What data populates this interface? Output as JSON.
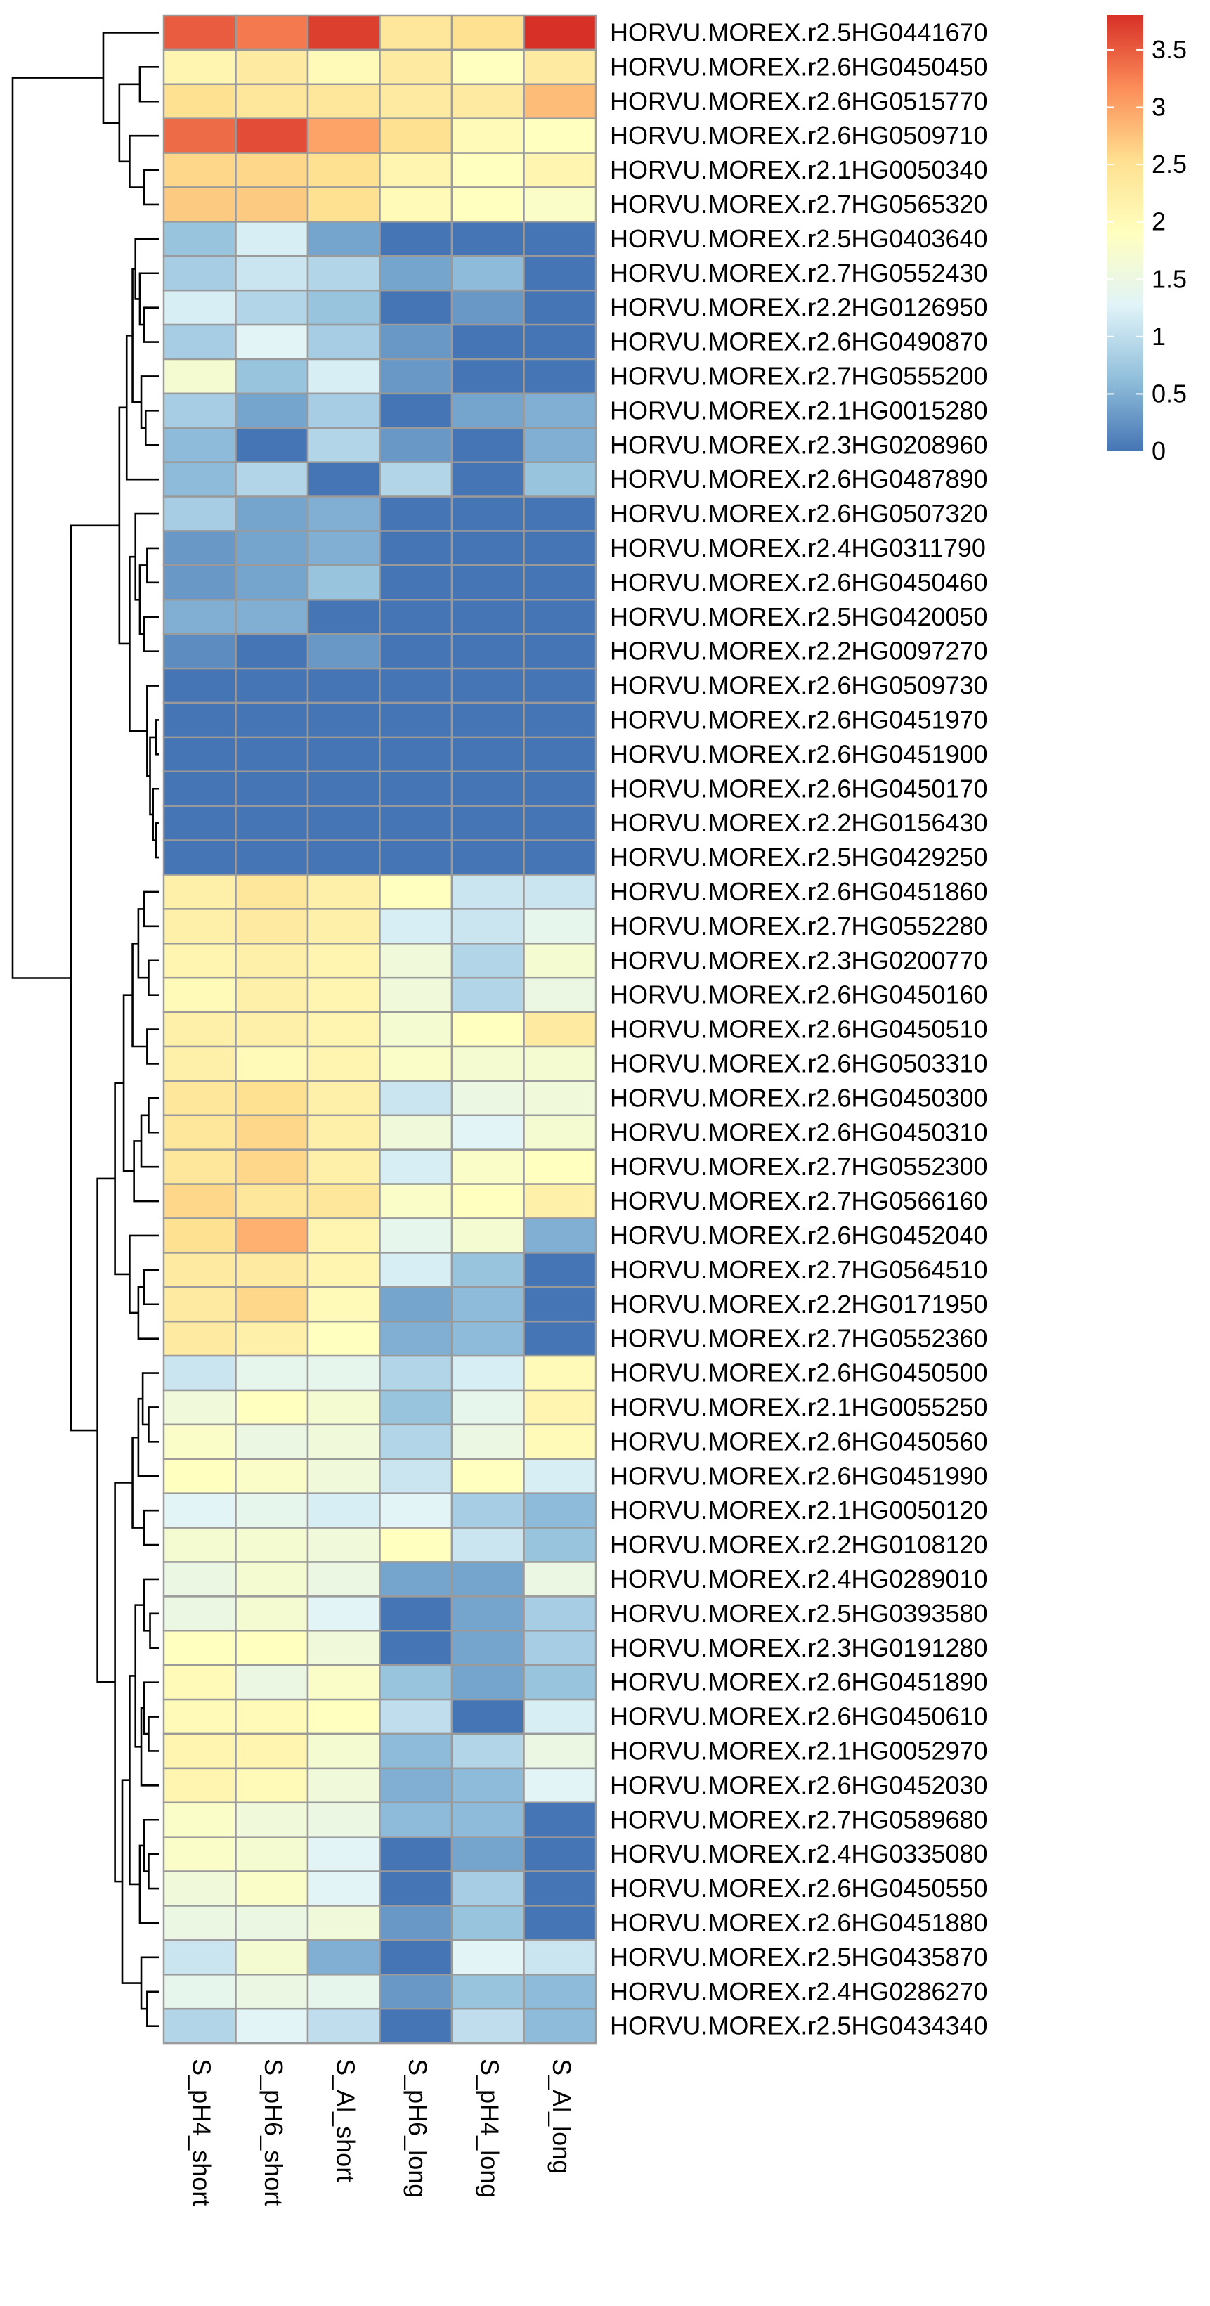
{
  "chart_data": {
    "type": "heatmap",
    "columns": [
      "S_pH4_short",
      "S_pH6_short",
      "S_Al_short",
      "S_pH6_long",
      "S_pH4_long",
      "S_Al_long"
    ],
    "rows": [
      "HORVU.MOREX.r2.5HG0441670",
      "HORVU.MOREX.r2.6HG0450450",
      "HORVU.MOREX.r2.6HG0515770",
      "HORVU.MOREX.r2.6HG0509710",
      "HORVU.MOREX.r2.1HG0050340",
      "HORVU.MOREX.r2.7HG0565320",
      "HORVU.MOREX.r2.5HG0403640",
      "HORVU.MOREX.r2.7HG0552430",
      "HORVU.MOREX.r2.2HG0126950",
      "HORVU.MOREX.r2.6HG0490870",
      "HORVU.MOREX.r2.7HG0555200",
      "HORVU.MOREX.r2.1HG0015280",
      "HORVU.MOREX.r2.3HG0208960",
      "HORVU.MOREX.r2.6HG0487890",
      "HORVU.MOREX.r2.6HG0507320",
      "HORVU.MOREX.r2.4HG0311790",
      "HORVU.MOREX.r2.6HG0450460",
      "HORVU.MOREX.r2.5HG0420050",
      "HORVU.MOREX.r2.2HG0097270",
      "HORVU.MOREX.r2.6HG0509730",
      "HORVU.MOREX.r2.6HG0451970",
      "HORVU.MOREX.r2.6HG0451900",
      "HORVU.MOREX.r2.6HG0450170",
      "HORVU.MOREX.r2.2HG0156430",
      "HORVU.MOREX.r2.5HG0429250",
      "HORVU.MOREX.r2.6HG0451860",
      "HORVU.MOREX.r2.7HG0552280",
      "HORVU.MOREX.r2.3HG0200770",
      "HORVU.MOREX.r2.6HG0450160",
      "HORVU.MOREX.r2.6HG0450510",
      "HORVU.MOREX.r2.6HG0503310",
      "HORVU.MOREX.r2.6HG0450300",
      "HORVU.MOREX.r2.6HG0450310",
      "HORVU.MOREX.r2.7HG0552300",
      "HORVU.MOREX.r2.7HG0566160",
      "HORVU.MOREX.r2.6HG0452040",
      "HORVU.MOREX.r2.7HG0564510",
      "HORVU.MOREX.r2.2HG0171950",
      "HORVU.MOREX.r2.7HG0552360",
      "HORVU.MOREX.r2.6HG0450500",
      "HORVU.MOREX.r2.1HG0055250",
      "HORVU.MOREX.r2.6HG0450560",
      "HORVU.MOREX.r2.6HG0451990",
      "HORVU.MOREX.r2.1HG0050120",
      "HORVU.MOREX.r2.2HG0108120",
      "HORVU.MOREX.r2.4HG0289010",
      "HORVU.MOREX.r2.5HG0393580",
      "HORVU.MOREX.r2.3HG0191280",
      "HORVU.MOREX.r2.6HG0451890",
      "HORVU.MOREX.r2.6HG0450610",
      "HORVU.MOREX.r2.1HG0052970",
      "HORVU.MOREX.r2.6HG0452030",
      "HORVU.MOREX.r2.7HG0589680",
      "HORVU.MOREX.r2.4HG0335080",
      "HORVU.MOREX.r2.6HG0450550",
      "HORVU.MOREX.r2.6HG0451880",
      "HORVU.MOREX.r2.5HG0435870",
      "HORVU.MOREX.r2.4HG0286270",
      "HORVU.MOREX.r2.5HG0434340"
    ],
    "values": [
      [
        3.5,
        3.3,
        3.7,
        2.4,
        2.5,
        3.8
      ],
      [
        2.1,
        2.3,
        2.0,
        2.3,
        1.9,
        2.3
      ],
      [
        2.5,
        2.4,
        2.4,
        2.3,
        2.3,
        2.8
      ],
      [
        3.4,
        3.6,
        3.0,
        2.5,
        2.0,
        1.9
      ],
      [
        2.6,
        2.6,
        2.5,
        2.1,
        1.9,
        2.1
      ],
      [
        2.7,
        2.7,
        2.5,
        2.0,
        1.9,
        1.8
      ],
      [
        0.7,
        1.2,
        0.4,
        0.0,
        0.0,
        0.0
      ],
      [
        0.8,
        1.1,
        0.9,
        0.4,
        0.6,
        0.0
      ],
      [
        1.2,
        0.9,
        0.7,
        0.0,
        0.3,
        0.0
      ],
      [
        0.8,
        1.3,
        0.8,
        0.3,
        0.0,
        0.0
      ],
      [
        1.7,
        0.7,
        1.2,
        0.3,
        0.0,
        0.0
      ],
      [
        0.8,
        0.4,
        0.8,
        0.0,
        0.4,
        0.5
      ],
      [
        0.6,
        0.0,
        0.9,
        0.3,
        0.0,
        0.5
      ],
      [
        0.6,
        0.9,
        0.0,
        0.9,
        0.0,
        0.7
      ],
      [
        0.8,
        0.4,
        0.5,
        0.0,
        0.0,
        0.0
      ],
      [
        0.3,
        0.4,
        0.5,
        0.0,
        0.0,
        0.0
      ],
      [
        0.3,
        0.4,
        0.7,
        0.0,
        0.0,
        0.0
      ],
      [
        0.5,
        0.5,
        0.0,
        0.0,
        0.0,
        0.0
      ],
      [
        0.2,
        0.0,
        0.3,
        0.0,
        0.0,
        0.0
      ],
      [
        0.0,
        0.0,
        0.0,
        0.0,
        0.0,
        0.0
      ],
      [
        0.0,
        0.0,
        0.0,
        0.0,
        0.0,
        0.0
      ],
      [
        0.0,
        0.0,
        0.0,
        0.0,
        0.0,
        0.0
      ],
      [
        0.0,
        0.0,
        0.0,
        0.0,
        0.0,
        0.0
      ],
      [
        0.0,
        0.0,
        0.0,
        0.0,
        0.0,
        0.0
      ],
      [
        0.0,
        0.0,
        0.0,
        0.0,
        0.0,
        0.0
      ],
      [
        2.2,
        2.4,
        2.2,
        1.9,
        1.1,
        1.1
      ],
      [
        2.2,
        2.3,
        2.2,
        1.2,
        1.1,
        1.4
      ],
      [
        2.1,
        2.2,
        2.1,
        1.6,
        0.9,
        1.7
      ],
      [
        2.0,
        2.2,
        2.1,
        1.6,
        0.9,
        1.5
      ],
      [
        2.2,
        2.2,
        2.1,
        1.7,
        1.9,
        2.3
      ],
      [
        2.2,
        2.0,
        2.1,
        1.8,
        1.7,
        1.7
      ],
      [
        2.4,
        2.5,
        2.2,
        1.1,
        1.5,
        1.6
      ],
      [
        2.4,
        2.6,
        2.2,
        1.6,
        1.3,
        1.7
      ],
      [
        2.4,
        2.6,
        2.2,
        1.2,
        1.8,
        1.9
      ],
      [
        2.6,
        2.4,
        2.4,
        1.8,
        1.9,
        2.2
      ],
      [
        2.5,
        2.9,
        2.1,
        1.4,
        1.7,
        0.5
      ],
      [
        2.3,
        2.3,
        2.1,
        1.2,
        0.7,
        0.0
      ],
      [
        2.3,
        2.6,
        2.0,
        0.4,
        0.6,
        0.0
      ],
      [
        2.3,
        2.2,
        1.9,
        0.5,
        0.6,
        0.0
      ],
      [
        1.1,
        1.4,
        1.4,
        0.9,
        1.2,
        2.0
      ],
      [
        1.6,
        1.9,
        1.7,
        0.7,
        1.4,
        2.1
      ],
      [
        1.8,
        1.5,
        1.6,
        0.9,
        1.5,
        2.0
      ],
      [
        1.9,
        1.8,
        1.6,
        1.1,
        1.9,
        1.2
      ],
      [
        1.3,
        1.4,
        1.2,
        1.3,
        0.8,
        0.6
      ],
      [
        1.7,
        1.7,
        1.6,
        1.9,
        1.1,
        0.7
      ],
      [
        1.5,
        1.7,
        1.5,
        0.4,
        0.4,
        1.5
      ],
      [
        1.5,
        1.7,
        1.3,
        0.0,
        0.4,
        0.8
      ],
      [
        1.9,
        1.9,
        1.6,
        0.0,
        0.4,
        0.8
      ],
      [
        2.0,
        1.5,
        1.8,
        0.7,
        0.4,
        0.7
      ],
      [
        2.0,
        2.0,
        1.9,
        1.0,
        0.0,
        1.2
      ],
      [
        2.1,
        2.1,
        1.7,
        0.6,
        0.9,
        1.5
      ],
      [
        2.1,
        2.0,
        1.6,
        0.5,
        0.6,
        1.3
      ],
      [
        1.8,
        1.6,
        1.5,
        0.6,
        0.6,
        0.0
      ],
      [
        1.8,
        1.7,
        1.3,
        0.0,
        0.4,
        0.0
      ],
      [
        1.6,
        1.8,
        1.3,
        0.0,
        0.8,
        0.0
      ],
      [
        1.5,
        1.5,
        1.6,
        0.3,
        0.7,
        0.0
      ],
      [
        1.1,
        1.7,
        0.5,
        0.0,
        1.3,
        1.1
      ],
      [
        1.4,
        1.5,
        1.4,
        0.3,
        0.7,
        0.6
      ],
      [
        0.9,
        1.3,
        1.0,
        0.0,
        1.0,
        0.6
      ]
    ],
    "scale": {
      "min": 0,
      "max": 3.8,
      "colors": [
        "#4575b4",
        "#91bfdb",
        "#e0f3f8",
        "#ffffbf",
        "#fee090",
        "#fc8d59",
        "#d73027"
      ],
      "ticks": [
        0,
        0.5,
        1,
        1.5,
        2,
        2.5,
        3,
        3.5
      ],
      "tick_labels": [
        "0",
        "0.5",
        "1",
        "1.5",
        "2",
        "2.5",
        "3",
        "3.5"
      ]
    },
    "row_dendrogram": [
      {
        "a": 20,
        "b": 21,
        "h": 0.02
      },
      {
        "a": 23,
        "b": 24,
        "h": 0.02
      },
      {
        "a": 22,
        "b": 23,
        "h": 0.04
      },
      {
        "a": 20,
        "b": 22,
        "h": 0.06
      },
      {
        "a": 19,
        "b": 20,
        "h": 0.08
      },
      {
        "a": 15,
        "b": 16,
        "h": 0.08
      },
      {
        "a": 17,
        "b": 18,
        "h": 0.1
      },
      {
        "a": 15,
        "b": 17,
        "h": 0.13
      },
      {
        "a": 14,
        "b": 15,
        "h": 0.16
      },
      {
        "a": 14,
        "b": 19,
        "h": 0.2
      },
      {
        "a": 8,
        "b": 9,
        "h": 0.1
      },
      {
        "a": 7,
        "b": 8,
        "h": 0.13
      },
      {
        "a": 6,
        "b": 7,
        "h": 0.16
      },
      {
        "a": 11,
        "b": 12,
        "h": 0.09
      },
      {
        "a": 10,
        "b": 11,
        "h": 0.12
      },
      {
        "a": 6,
        "b": 10,
        "h": 0.18
      },
      {
        "a": 6,
        "b": 13,
        "h": 0.22
      },
      {
        "a": 6,
        "b": 14,
        "h": 0.27
      },
      {
        "a": 1,
        "b": 2,
        "h": 0.13
      },
      {
        "a": 4,
        "b": 5,
        "h": 0.1
      },
      {
        "a": 3,
        "b": 4,
        "h": 0.2
      },
      {
        "a": 1,
        "b": 3,
        "h": 0.27
      },
      {
        "a": 0,
        "b": 1,
        "h": 0.38
      },
      {
        "a": 25,
        "b": 26,
        "h": 0.1
      },
      {
        "a": 27,
        "b": 28,
        "h": 0.07
      },
      {
        "a": 25,
        "b": 27,
        "h": 0.14
      },
      {
        "a": 29,
        "b": 30,
        "h": 0.08
      },
      {
        "a": 25,
        "b": 29,
        "h": 0.18
      },
      {
        "a": 31,
        "b": 32,
        "h": 0.07
      },
      {
        "a": 31,
        "b": 33,
        "h": 0.12
      },
      {
        "a": 31,
        "b": 34,
        "h": 0.17
      },
      {
        "a": 25,
        "b": 31,
        "h": 0.24
      },
      {
        "a": 36,
        "b": 37,
        "h": 0.1
      },
      {
        "a": 36,
        "b": 38,
        "h": 0.14
      },
      {
        "a": 35,
        "b": 36,
        "h": 0.2
      },
      {
        "a": 25,
        "b": 35,
        "h": 0.3
      },
      {
        "a": 40,
        "b": 41,
        "h": 0.07
      },
      {
        "a": 39,
        "b": 40,
        "h": 0.11
      },
      {
        "a": 39,
        "b": 42,
        "h": 0.14
      },
      {
        "a": 43,
        "b": 44,
        "h": 0.1
      },
      {
        "a": 39,
        "b": 43,
        "h": 0.18
      },
      {
        "a": 46,
        "b": 47,
        "h": 0.06
      },
      {
        "a": 45,
        "b": 46,
        "h": 0.1
      },
      {
        "a": 49,
        "b": 50,
        "h": 0.07
      },
      {
        "a": 48,
        "b": 49,
        "h": 0.1
      },
      {
        "a": 48,
        "b": 51,
        "h": 0.12
      },
      {
        "a": 45,
        "b": 48,
        "h": 0.16
      },
      {
        "a": 53,
        "b": 54,
        "h": 0.07
      },
      {
        "a": 52,
        "b": 53,
        "h": 0.1
      },
      {
        "a": 52,
        "b": 55,
        "h": 0.13
      },
      {
        "a": 45,
        "b": 52,
        "h": 0.2
      },
      {
        "a": 57,
        "b": 58,
        "h": 0.08
      },
      {
        "a": 56,
        "b": 57,
        "h": 0.12
      },
      {
        "a": 45,
        "b": 56,
        "h": 0.25
      },
      {
        "a": 39,
        "b": 45,
        "h": 0.3
      },
      {
        "a": 25,
        "b": 39,
        "h": 0.42
      },
      {
        "a": 6,
        "b": 25,
        "h": 0.6
      },
      {
        "a": 0,
        "b": 6,
        "h": 1.0
      }
    ]
  }
}
